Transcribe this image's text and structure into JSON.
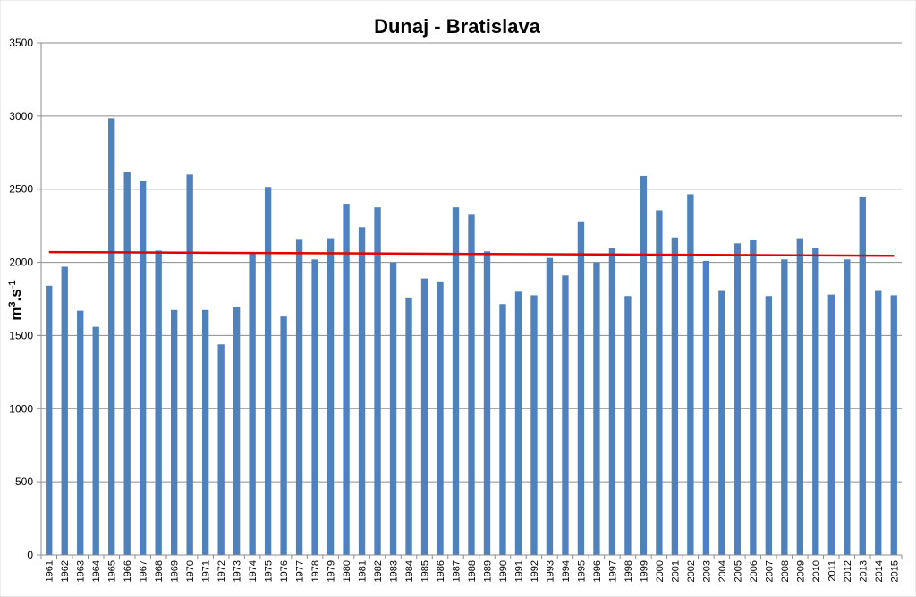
{
  "chart_data": {
    "type": "bar",
    "title": "Dunaj - Bratislava",
    "ylabel": {
      "base": "m",
      "sup1": "3",
      "mid": ".s",
      "sup2": "-1"
    },
    "xlabel": "",
    "ylim": [
      0,
      3500
    ],
    "yticks": [
      0,
      500,
      1000,
      1500,
      2000,
      2500,
      3000,
      3500
    ],
    "grid": true,
    "bar_color": "#4F81BD",
    "trend_color": "#E00000",
    "categories": [
      "1961",
      "1962",
      "1963",
      "1964",
      "1965",
      "1966",
      "1967",
      "1968",
      "1969",
      "1970",
      "1971",
      "1972",
      "1973",
      "1974",
      "1975",
      "1976",
      "1977",
      "1978",
      "1979",
      "1980",
      "1981",
      "1982",
      "1983",
      "1984",
      "1985",
      "1986",
      "1987",
      "1988",
      "1989",
      "1990",
      "1991",
      "1992",
      "1993",
      "1994",
      "1995",
      "1996",
      "1997",
      "1998",
      "1999",
      "2000",
      "2001",
      "2002",
      "2003",
      "2004",
      "2005",
      "2006",
      "2007",
      "2008",
      "2009",
      "2010",
      "2011",
      "2012",
      "2013",
      "2014",
      "2015"
    ],
    "values": [
      1840,
      1970,
      1670,
      1560,
      2985,
      2615,
      2555,
      2080,
      1675,
      2600,
      1675,
      1440,
      1695,
      2065,
      2515,
      1630,
      2160,
      2020,
      2165,
      2400,
      2240,
      2375,
      2000,
      1760,
      1890,
      1870,
      2375,
      2325,
      2075,
      1715,
      1800,
      1775,
      2030,
      1910,
      2280,
      2000,
      2095,
      1770,
      2590,
      2355,
      2170,
      2465,
      2010,
      1805,
      2130,
      2155,
      1770,
      2020,
      2165,
      2100,
      1780,
      2020,
      2450,
      1805,
      1775
    ],
    "trend": {
      "name": "",
      "start": 2070,
      "end": 2045
    }
  }
}
